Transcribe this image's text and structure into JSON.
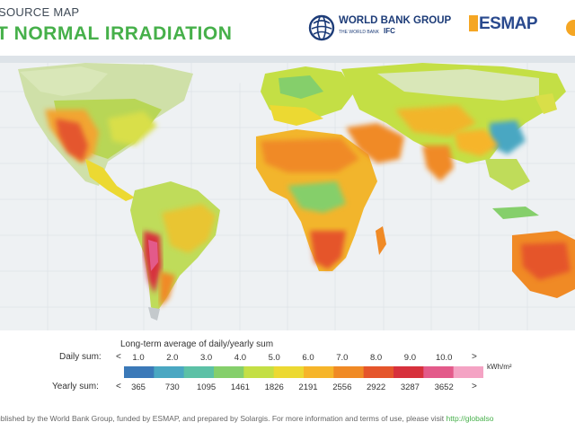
{
  "header": {
    "subtitle": "SOURCE MAP",
    "title": "T NORMAL IRRADIATION"
  },
  "logos": {
    "world_bank": "WORLD BANK GROUP",
    "world_bank_sub": "THE WORLD BANK",
    "ifc": "IFC",
    "esmap": "ESMAP"
  },
  "legend": {
    "caption": "Long-term average of daily/yearly sum",
    "daily_label": "Daily sum:",
    "yearly_label": "Yearly sum:",
    "daily_values": [
      "1.0",
      "2.0",
      "3.0",
      "4.0",
      "5.0",
      "6.0",
      "7.0",
      "8.0",
      "9.0",
      "10.0"
    ],
    "yearly_values": [
      "365",
      "730",
      "1095",
      "1461",
      "1826",
      "2191",
      "2556",
      "2922",
      "3287",
      "3652"
    ],
    "unit": "kWh/m²",
    "left_arrow": "<",
    "right_arrow": ">",
    "colors": [
      "#3b79b8",
      "#4aa7c2",
      "#5cc1a6",
      "#85cf6b",
      "#c4df45",
      "#ecd932",
      "#f6b52a",
      "#f08a25",
      "#e5552b",
      "#d7313c",
      "#e35a8a",
      "#f4a3c4"
    ]
  },
  "footer": {
    "text": "ublished by the World Bank Group, funded by ESMAP, and prepared by Solargis. For more information and terms of use, please visit",
    "link": "http://globalso"
  }
}
